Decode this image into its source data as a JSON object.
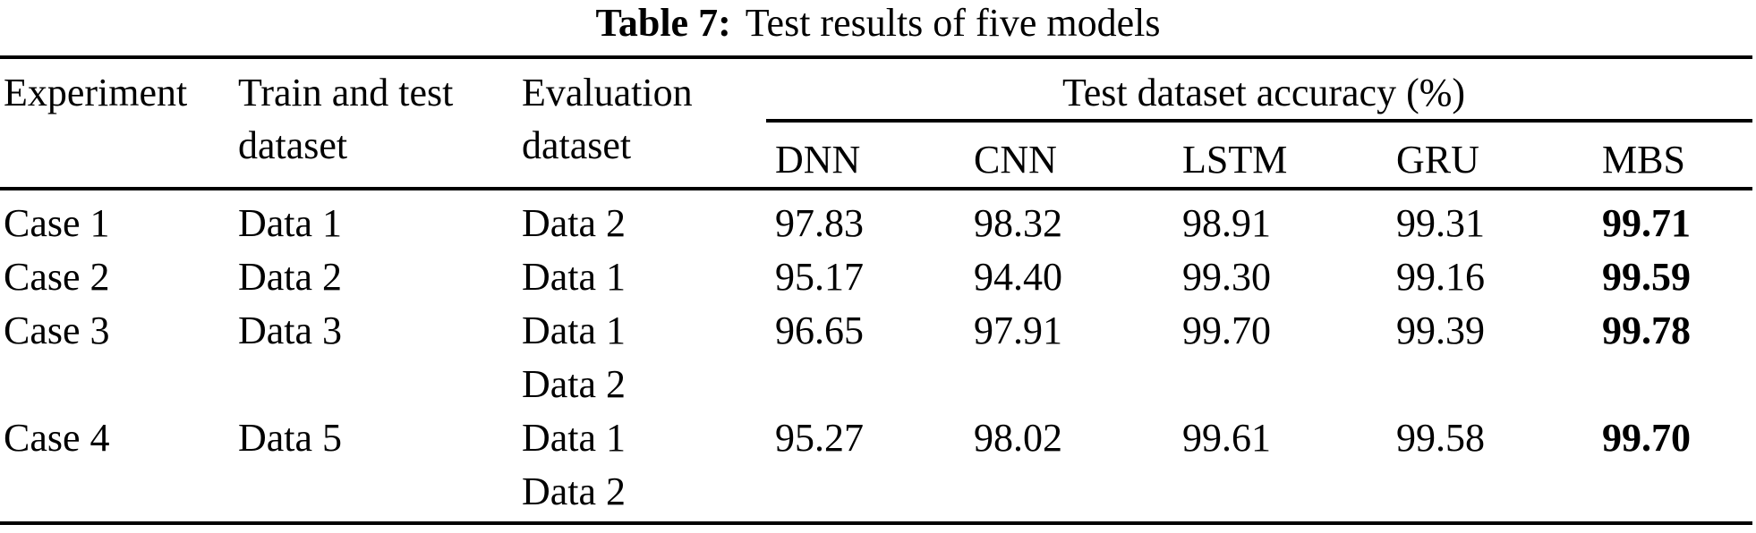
{
  "caption": {
    "label": "Table 7:",
    "text": "Test results of five models"
  },
  "header": {
    "experiment": "Experiment",
    "train": [
      "Train and test",
      "dataset"
    ],
    "eval": [
      "Evaluation",
      "dataset"
    ],
    "span": "Test dataset accuracy (%)",
    "models": [
      "DNN",
      "CNN",
      "LSTM",
      "GRU",
      "MBS"
    ]
  },
  "rows": [
    {
      "experiment": "Case 1",
      "train": "Data 1",
      "eval1": "Data 2",
      "eval2": "",
      "dnn": "97.83",
      "cnn": "98.32",
      "lstm": "98.91",
      "gru": "99.31",
      "mbs": "99.71"
    },
    {
      "experiment": "Case 2",
      "train": "Data 2",
      "eval1": "Data 1",
      "eval2": "",
      "dnn": "95.17",
      "cnn": "94.40",
      "lstm": "99.30",
      "gru": "99.16",
      "mbs": "99.59"
    },
    {
      "experiment": "Case 3",
      "train": "Data 3",
      "eval1": "Data 1",
      "eval2": "Data 2",
      "dnn": "96.65",
      "cnn": "97.91",
      "lstm": "99.70",
      "gru": "99.39",
      "mbs": "99.78"
    },
    {
      "experiment": "Case 4",
      "train": "Data 5",
      "eval1": "Data 1",
      "eval2": "Data 2",
      "dnn": "95.27",
      "cnn": "98.02",
      "lstm": "99.61",
      "gru": "99.58",
      "mbs": "99.70"
    }
  ],
  "colors": {
    "text": "#000000",
    "background": "#ffffff",
    "rule": "#000000"
  }
}
